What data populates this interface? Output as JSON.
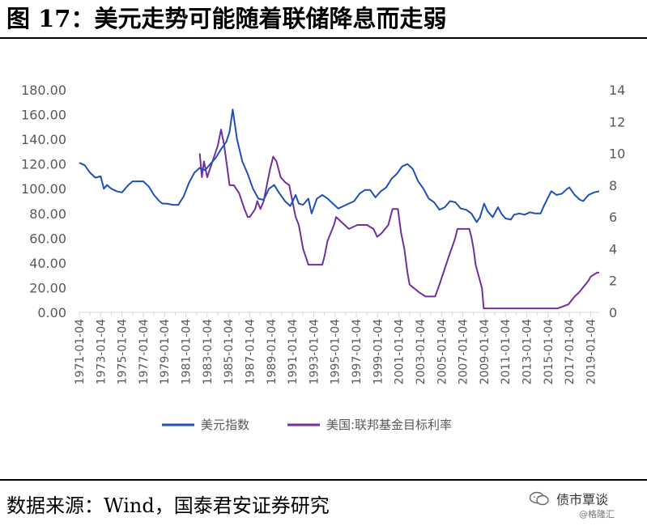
{
  "title": "图 17：美元走势可能随着联储降息而走弱",
  "source": "数据来源：Wind，国泰君安证券研究",
  "watermark": {
    "name": "债市覃谈",
    "sub": "@格隆汇",
    "icon": "wechat-icon"
  },
  "colors": {
    "dxy": "#1f4fb8",
    "fed": "#7030a0",
    "axis": "#d9d9d9",
    "text": "#595959"
  },
  "chart_data": {
    "type": "line",
    "y_left": {
      "ylim": [
        0,
        180
      ],
      "ticks": [
        "0.00",
        "20.00",
        "40.00",
        "60.00",
        "80.00",
        "100.00",
        "120.00",
        "140.00",
        "160.00",
        "180.00"
      ]
    },
    "y_right": {
      "ylim": [
        0,
        14
      ],
      "ticks": [
        "0",
        "2",
        "4",
        "6",
        "8",
        "10",
        "12",
        "14"
      ]
    },
    "x_range": [
      1971.0,
      2019.8
    ],
    "x_ticks": [
      "1971-01-04",
      "1973-01-04",
      "1975-01-04",
      "1977-01-04",
      "1979-01-04",
      "1981-01-04",
      "1983-01-04",
      "1985-01-04",
      "1987-01-04",
      "1989-01-04",
      "1991-01-04",
      "1993-01-04",
      "1995-01-04",
      "1997-01-04",
      "1999-01-04",
      "2001-01-04",
      "2003-01-04",
      "2005-01-04",
      "2007-01-04",
      "2009-01-04",
      "2011-01-04",
      "2013-01-04",
      "2015-01-04",
      "2017-01-04",
      "2019-01-04"
    ],
    "x_minor_ticks": [
      "1972-01-04",
      "1974-01-04",
      "1976-01-04",
      "1978-01-04",
      "1980-01-04",
      "1982-01-04",
      "1984-01-04",
      "1986-01-04",
      "1988-01-04",
      "1990-01-04",
      "1992-01-04",
      "1994-01-04",
      "1996-01-04",
      "1998-01-04",
      "2000-01-04",
      "2002-01-04",
      "2004-01-04",
      "2006-01-04",
      "2008-01-04",
      "2010-01-04",
      "2012-01-04",
      "2014-01-04",
      "2016-01-04",
      "2018-01-04"
    ],
    "legend_position": "bottom",
    "grid": false,
    "series": [
      {
        "name": "美元指数",
        "axis": "left",
        "x": [
          1971.0,
          1971.5,
          1972.0,
          1972.5,
          1973.0,
          1973.3,
          1973.6,
          1974.0,
          1974.5,
          1975.0,
          1975.6,
          1976.0,
          1976.5,
          1977.0,
          1977.5,
          1978.0,
          1978.5,
          1978.8,
          1979.2,
          1979.8,
          1980.3,
          1980.8,
          1981.3,
          1981.8,
          1982.3,
          1982.8,
          1983.3,
          1983.8,
          1984.3,
          1984.8,
          1985.1,
          1985.4,
          1985.8,
          1986.3,
          1986.8,
          1987.3,
          1987.8,
          1988.3,
          1988.8,
          1989.3,
          1989.8,
          1990.3,
          1990.8,
          1991.3,
          1991.6,
          1992.0,
          1992.5,
          1992.8,
          1993.3,
          1993.8,
          1994.3,
          1994.8,
          1995.3,
          1995.8,
          1996.3,
          1996.8,
          1997.3,
          1997.8,
          1998.3,
          1998.8,
          1999.3,
          1999.8,
          2000.3,
          2000.8,
          2001.3,
          2001.8,
          2002.3,
          2002.8,
          2003.3,
          2003.8,
          2004.3,
          2004.8,
          2005.3,
          2005.8,
          2006.3,
          2006.8,
          2007.3,
          2007.8,
          2008.3,
          2008.6,
          2009.0,
          2009.3,
          2009.8,
          2010.3,
          2010.6,
          2011.0,
          2011.5,
          2011.8,
          2012.3,
          2012.8,
          2013.3,
          2013.8,
          2014.3,
          2014.6,
          2015.0,
          2015.3,
          2015.8,
          2016.3,
          2016.8,
          2017.0,
          2017.5,
          2018.0,
          2018.3,
          2018.8,
          2019.3,
          2019.8
        ],
        "y": [
          121,
          119,
          113,
          109,
          110,
          100,
          103,
          100,
          98,
          97,
          103,
          106,
          106,
          106,
          102,
          95,
          90,
          88,
          88,
          87,
          87,
          94,
          105,
          113,
          117,
          115,
          120,
          125,
          132,
          138,
          146,
          164,
          140,
          122,
          112,
          100,
          92,
          91,
          100,
          103,
          96,
          90,
          86,
          95,
          88,
          87,
          92,
          80,
          92,
          95,
          92,
          88,
          84,
          86,
          88,
          90,
          96,
          99,
          99,
          93,
          98,
          101,
          108,
          112,
          118,
          120,
          116,
          106,
          100,
          92,
          89,
          83,
          85,
          90,
          89,
          84,
          83,
          80,
          73,
          77,
          88,
          82,
          77,
          85,
          80,
          76,
          75,
          79,
          80,
          79,
          81,
          80,
          80,
          86,
          93,
          98,
          95,
          96,
          100,
          101,
          95,
          91,
          90,
          95,
          97,
          98
        ]
      },
      {
        "name": "美国:联邦基金目标利率",
        "axis": "right",
        "x": [
          1982.3,
          1982.5,
          1982.7,
          1983.0,
          1983.5,
          1984.0,
          1984.3,
          1984.6,
          1984.9,
          1985.1,
          1985.5,
          1986.0,
          1986.5,
          1986.8,
          1987.0,
          1987.5,
          1987.7,
          1988.0,
          1988.3,
          1988.6,
          1988.9,
          1989.2,
          1989.5,
          1989.9,
          1990.3,
          1990.7,
          1991.0,
          1991.3,
          1991.6,
          1992.0,
          1992.5,
          1993.0,
          1993.8,
          1994.0,
          1994.3,
          1994.6,
          1994.9,
          1995.1,
          1995.5,
          1995.9,
          1996.3,
          1997.1,
          1998.0,
          1998.6,
          1998.8,
          1998.95,
          1999.4,
          1999.7,
          2000.0,
          2000.4,
          2000.9,
          2001.0,
          2001.2,
          2001.5,
          2001.8,
          2002.0,
          2002.9,
          2003.5,
          2004.4,
          2004.8,
          2005.3,
          2005.8,
          2006.2,
          2006.5,
          2007.6,
          2007.8,
          2008.0,
          2008.2,
          2008.5,
          2008.8,
          2008.95,
          2009.5,
          2012.0,
          2015.9,
          2016.9,
          2017.2,
          2017.5,
          2017.9,
          2018.2,
          2018.5,
          2018.8,
          2019.0,
          2019.6,
          2019.8
        ],
        "y": [
          10,
          8.5,
          9.5,
          8.5,
          9.5,
          10.5,
          11.5,
          10.5,
          9,
          8,
          8,
          7.5,
          6.5,
          6,
          6,
          6.5,
          7,
          6.5,
          7,
          8,
          9,
          9.8,
          9.5,
          8.5,
          8.2,
          8,
          7,
          6,
          5.5,
          4,
          3,
          3,
          3,
          3.5,
          4.5,
          5,
          5.5,
          6,
          5.75,
          5.5,
          5.25,
          5.5,
          5.5,
          5.25,
          5,
          4.75,
          5,
          5.25,
          5.5,
          6.5,
          6.5,
          6,
          5,
          4,
          2.5,
          1.75,
          1.25,
          1,
          1,
          1.75,
          2.75,
          3.75,
          4.5,
          5.25,
          5.25,
          4.75,
          4,
          3,
          2.25,
          1.5,
          0.25,
          0.25,
          0.25,
          0.25,
          0.5,
          0.75,
          1,
          1.25,
          1.5,
          1.75,
          2,
          2.25,
          2.5,
          2.5
        ]
      }
    ]
  }
}
